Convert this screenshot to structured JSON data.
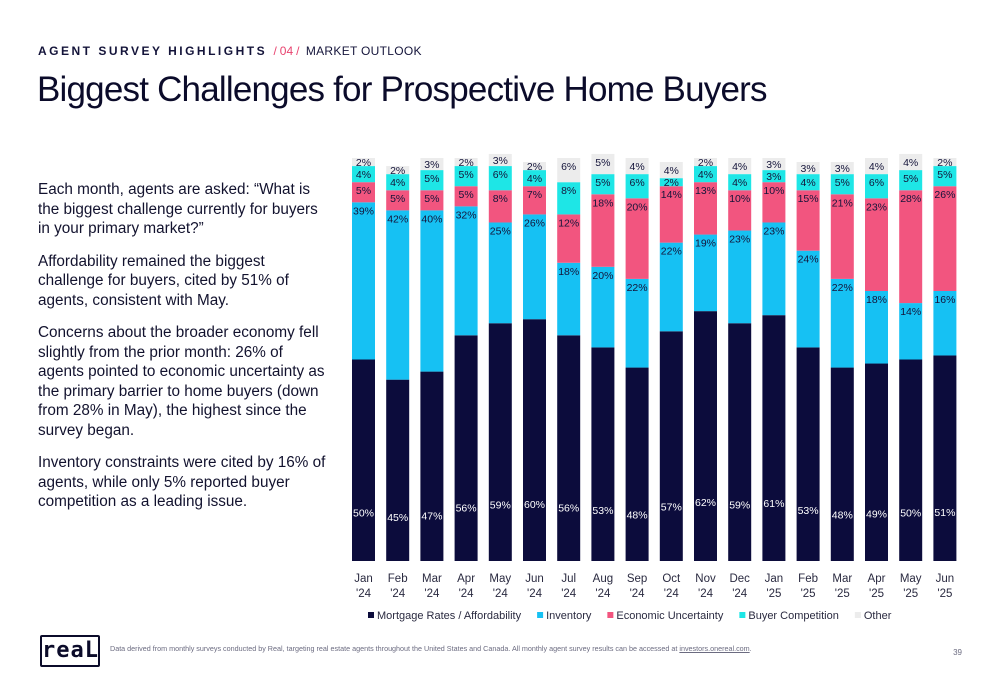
{
  "header": {
    "section": "AGENT SURVEY HIGHLIGHTS",
    "separator": "/",
    "number": "04",
    "topic": "MARKET OUTLOOK"
  },
  "title": "Biggest Challenges for Prospective Home Buyers",
  "paragraphs": [
    "Each month, agents are asked: “What is the biggest challenge currently for buyers in your primary market?”",
    "Affordability remained the biggest challenge for buyers, cited by 51% of agents, consistent with May.",
    "Concerns about the broader economy fell slightly from the prior month: 26% of agents pointed to economic uncertainty as the primary barrier to home buyers (down from 28% in May), the highest since the survey began.",
    "Inventory constraints were cited by 16% of agents, while only 5% reported buyer competition as a leading issue."
  ],
  "footer": {
    "logo": "reaL",
    "note": "Data derived from monthly surveys conducted by Real, targeting real estate agents throughout the United States and Canada. All monthly agent survey results can be accessed at",
    "link": "investors.onereal.com",
    "note_end": ".",
    "page_number": "39"
  },
  "chart_data": {
    "type": "bar",
    "stacked": true,
    "percent_stacked": true,
    "categories": [
      [
        "Jan",
        "'24"
      ],
      [
        "Feb",
        "'24"
      ],
      [
        "Mar",
        "'24"
      ],
      [
        "Apr",
        "'24"
      ],
      [
        "May",
        "'24"
      ],
      [
        "Jun",
        "'24"
      ],
      [
        "Jul",
        "'24"
      ],
      [
        "Aug",
        "'24"
      ],
      [
        "Sep",
        "'24"
      ],
      [
        "Oct",
        "'24"
      ],
      [
        "Nov",
        "'24"
      ],
      [
        "Dec",
        "'24"
      ],
      [
        "Jan",
        "'25"
      ],
      [
        "Feb",
        "'25"
      ],
      [
        "Mar",
        "'25"
      ],
      [
        "Apr",
        "'25"
      ],
      [
        "May",
        "'25"
      ],
      [
        "Jun",
        "'25"
      ]
    ],
    "series": [
      {
        "name": "Mortgage Rates / Affordability",
        "color": "#0c0c3c",
        "label_color": "#ffffff",
        "values": [
          50,
          45,
          47,
          56,
          59,
          60,
          56,
          53,
          48,
          57,
          62,
          59,
          61,
          53,
          48,
          49,
          50,
          51
        ]
      },
      {
        "name": "Inventory",
        "color": "#16c1f3",
        "label_color": "#14143a",
        "values": [
          39,
          42,
          40,
          32,
          25,
          26,
          18,
          20,
          22,
          22,
          19,
          23,
          23,
          24,
          22,
          18,
          14,
          16
        ]
      },
      {
        "name": "Economic Uncertainty",
        "color": "#f2557f",
        "label_color": "#14143a",
        "values": [
          5,
          5,
          5,
          5,
          8,
          7,
          12,
          18,
          20,
          14,
          13,
          10,
          10,
          15,
          21,
          23,
          28,
          26
        ]
      },
      {
        "name": "Buyer Competition",
        "color": "#1ee6e6",
        "label_color": "#14143a",
        "values": [
          4,
          4,
          5,
          5,
          6,
          4,
          8,
          5,
          6,
          2,
          4,
          4,
          3,
          4,
          5,
          6,
          5,
          5
        ]
      },
      {
        "name": "Other",
        "color": "#ececec",
        "label_color": "#14143a",
        "values": [
          2,
          2,
          3,
          2,
          3,
          2,
          6,
          5,
          4,
          4,
          2,
          4,
          3,
          3,
          3,
          4,
          4,
          2
        ]
      }
    ],
    "ylim": [
      0,
      100
    ],
    "grid": false,
    "legend_position": "bottom"
  }
}
